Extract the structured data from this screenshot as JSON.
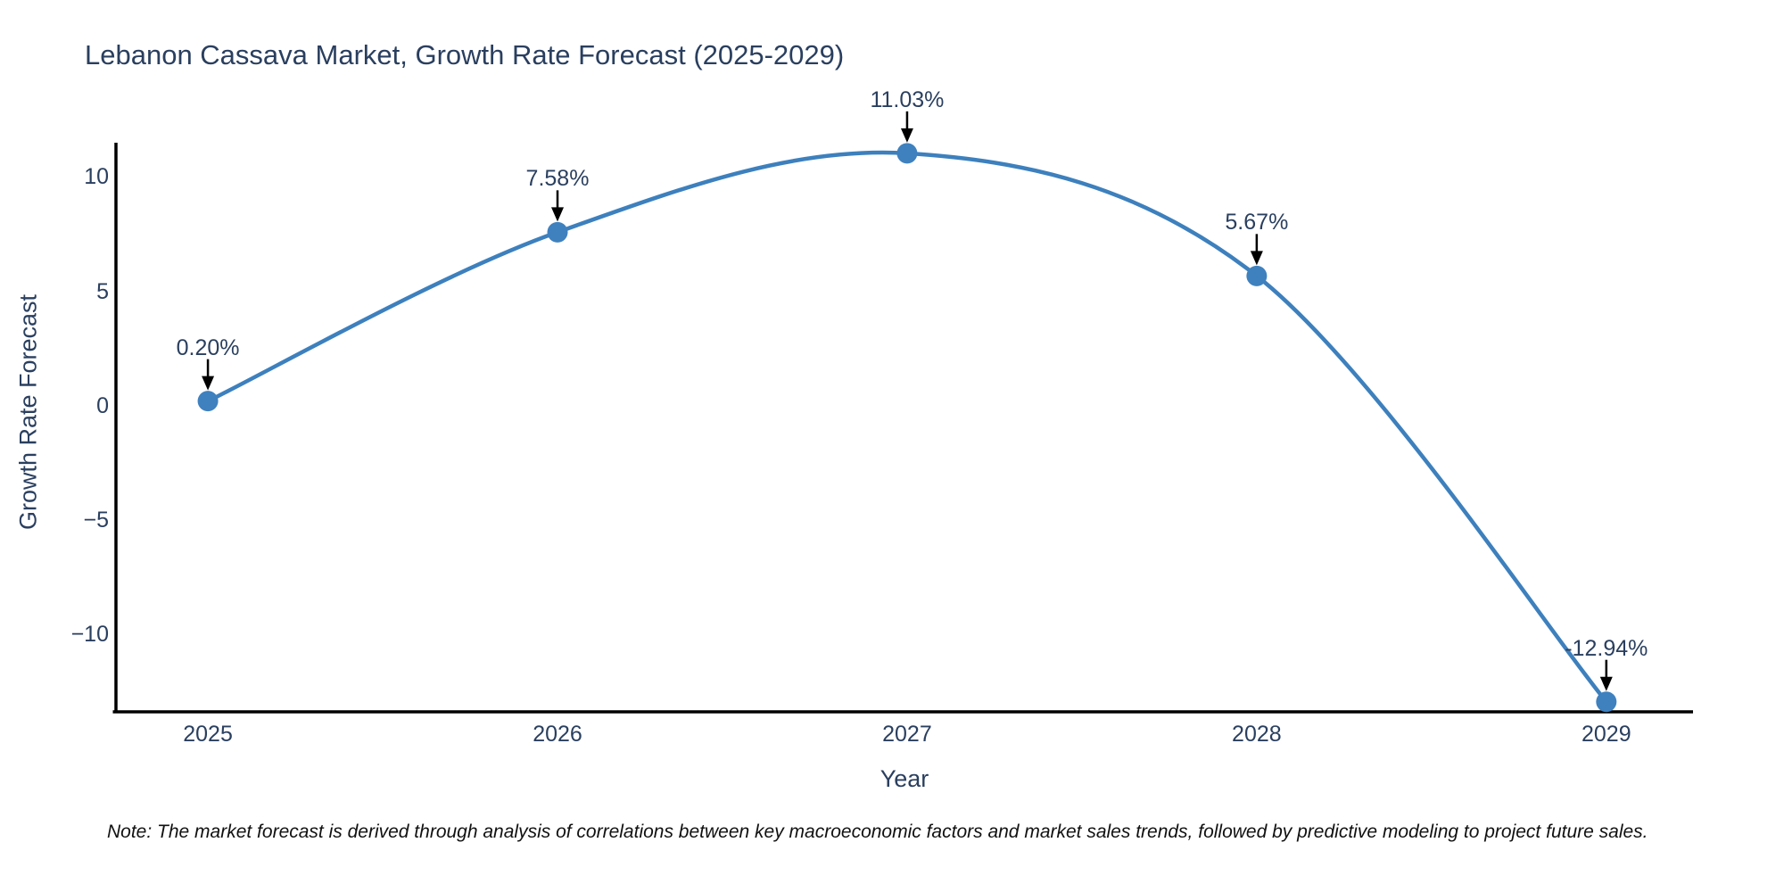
{
  "chart_data": {
    "type": "line",
    "title": "Lebanon Cassava Market, Growth Rate Forecast (2025-2029)",
    "xlabel": "Year",
    "ylabel": "Growth Rate Forecast",
    "x": [
      2025,
      2026,
      2027,
      2028,
      2029
    ],
    "values": [
      0.2,
      7.58,
      11.03,
      5.67,
      -12.94
    ],
    "point_labels": [
      "0.20%",
      "7.58%",
      "11.03%",
      "5.67%",
      "-12.94%"
    ],
    "x_ticks": {
      "values": [
        2025,
        2026,
        2027,
        2028,
        2029
      ],
      "labels": [
        "2025",
        "2026",
        "2027",
        "2028",
        "2029"
      ]
    },
    "y_ticks": {
      "values": [
        10,
        5,
        0,
        -5,
        -10
      ],
      "labels": [
        "10",
        "5",
        "0",
        "−5",
        "−10"
      ]
    },
    "xlim": [
      2024.737,
      2029.248
    ],
    "ylim": [
      -13.38,
      11.57
    ],
    "line_shape": "spline",
    "grid": false,
    "legend": "none",
    "colors": {
      "line": "#3d80bd",
      "marker": "#3f81bf",
      "axis": "#000000",
      "text": "#2a3f5f",
      "arrow": "#000000",
      "note": "#111111"
    },
    "note": "Note: The market forecast is derived through analysis of correlations between key macroeconomic factors and market sales trends, followed by predictive modeling to project future sales."
  }
}
